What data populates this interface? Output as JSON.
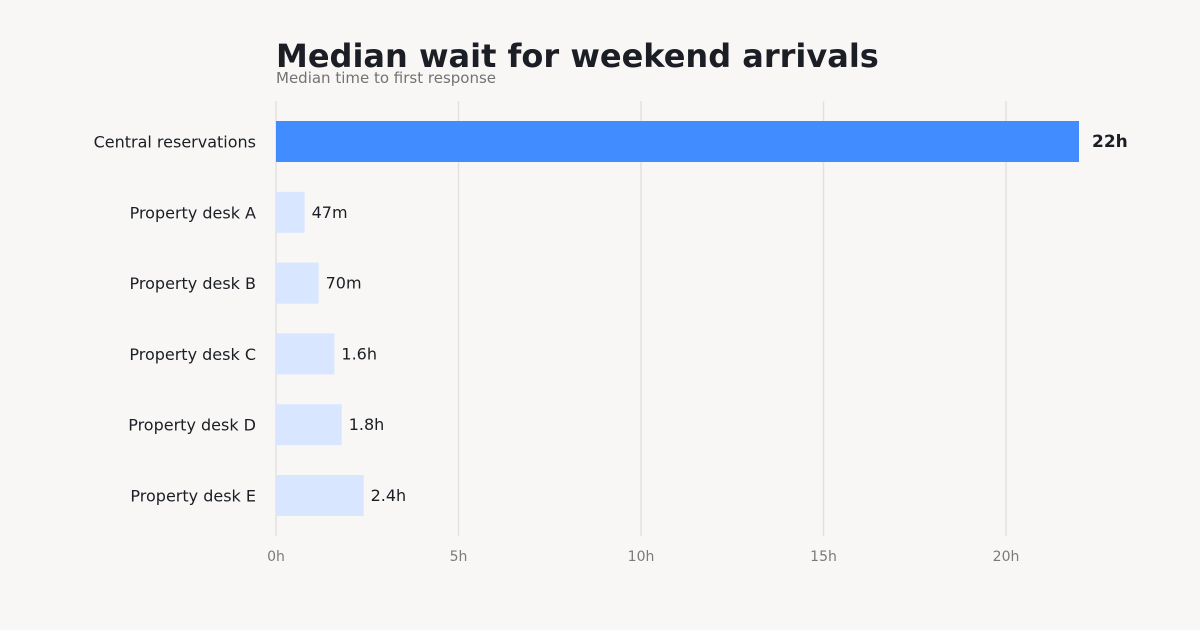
{
  "colors": {
    "background": "#f8f7f5",
    "highlight_bar": "#418dff",
    "muted_bar": "#d8e6ff",
    "text": "#1b1e24",
    "muted_text": "#737373",
    "grid": "#e4e2de"
  },
  "chart_data": {
    "type": "bar",
    "orientation": "horizontal",
    "title": "Median wait for weekend arrivals",
    "subtitle": "Median time to first response",
    "xlabel": "",
    "ylabel": "",
    "unit": "hours",
    "categories": [
      "Central reservations",
      "Property desk A",
      "Property desk B",
      "Property desk C",
      "Property desk D",
      "Property desk E"
    ],
    "values": [
      22,
      0.783,
      1.167,
      1.6,
      1.8,
      2.4
    ],
    "value_labels": [
      "22h",
      "47m",
      "70m",
      "1.6h",
      "1.8h",
      "2.4h"
    ],
    "highlighted": [
      true,
      false,
      false,
      false,
      false,
      false
    ],
    "xlim": [
      0,
      23
    ],
    "x_ticks": [
      0,
      5,
      10,
      15,
      20
    ],
    "x_tick_labels": [
      "0h",
      "5h",
      "10h",
      "15h",
      "20h"
    ],
    "grid": true,
    "legend": "none"
  }
}
